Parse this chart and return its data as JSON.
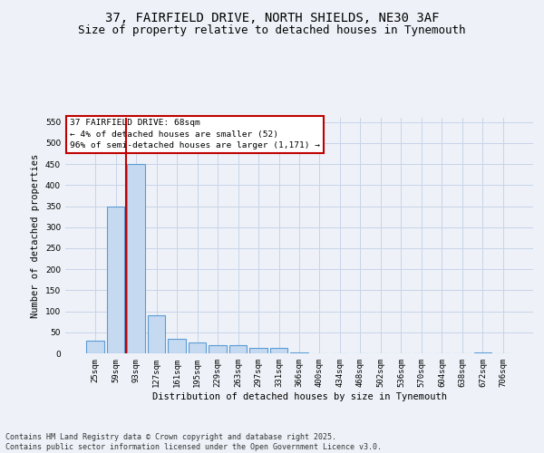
{
  "title_line1": "37, FAIRFIELD DRIVE, NORTH SHIELDS, NE30 3AF",
  "title_line2": "Size of property relative to detached houses in Tynemouth",
  "xlabel": "Distribution of detached houses by size in Tynemouth",
  "ylabel": "Number of detached properties",
  "categories": [
    "25sqm",
    "59sqm",
    "93sqm",
    "127sqm",
    "161sqm",
    "195sqm",
    "229sqm",
    "263sqm",
    "297sqm",
    "331sqm",
    "366sqm",
    "400sqm",
    "434sqm",
    "468sqm",
    "502sqm",
    "536sqm",
    "570sqm",
    "604sqm",
    "638sqm",
    "672sqm",
    "706sqm"
  ],
  "values": [
    30,
    350,
    450,
    90,
    35,
    25,
    20,
    20,
    12,
    12,
    2,
    0,
    0,
    0,
    0,
    0,
    0,
    0,
    0,
    2,
    0
  ],
  "bar_color": "#c5d9f0",
  "bar_edge_color": "#5b9bd5",
  "ylim": [
    0,
    560
  ],
  "yticks": [
    0,
    50,
    100,
    150,
    200,
    250,
    300,
    350,
    400,
    450,
    500,
    550
  ],
  "vline_x_index": 1.5,
  "vline_color": "#c00000",
  "annotation_box_text": "37 FAIRFIELD DRIVE: 68sqm\n← 4% of detached houses are smaller (52)\n96% of semi-detached houses are larger (1,171) →",
  "annotation_box_color": "#c00000",
  "background_color": "#eef2f8",
  "grid_color": "#c8d4e8",
  "footnote": "Contains HM Land Registry data © Crown copyright and database right 2025.\nContains public sector information licensed under the Open Government Licence v3.0.",
  "title_fontsize": 10,
  "subtitle_fontsize": 9,
  "label_fontsize": 7.5,
  "tick_fontsize": 6.5,
  "footnote_fontsize": 6.0
}
